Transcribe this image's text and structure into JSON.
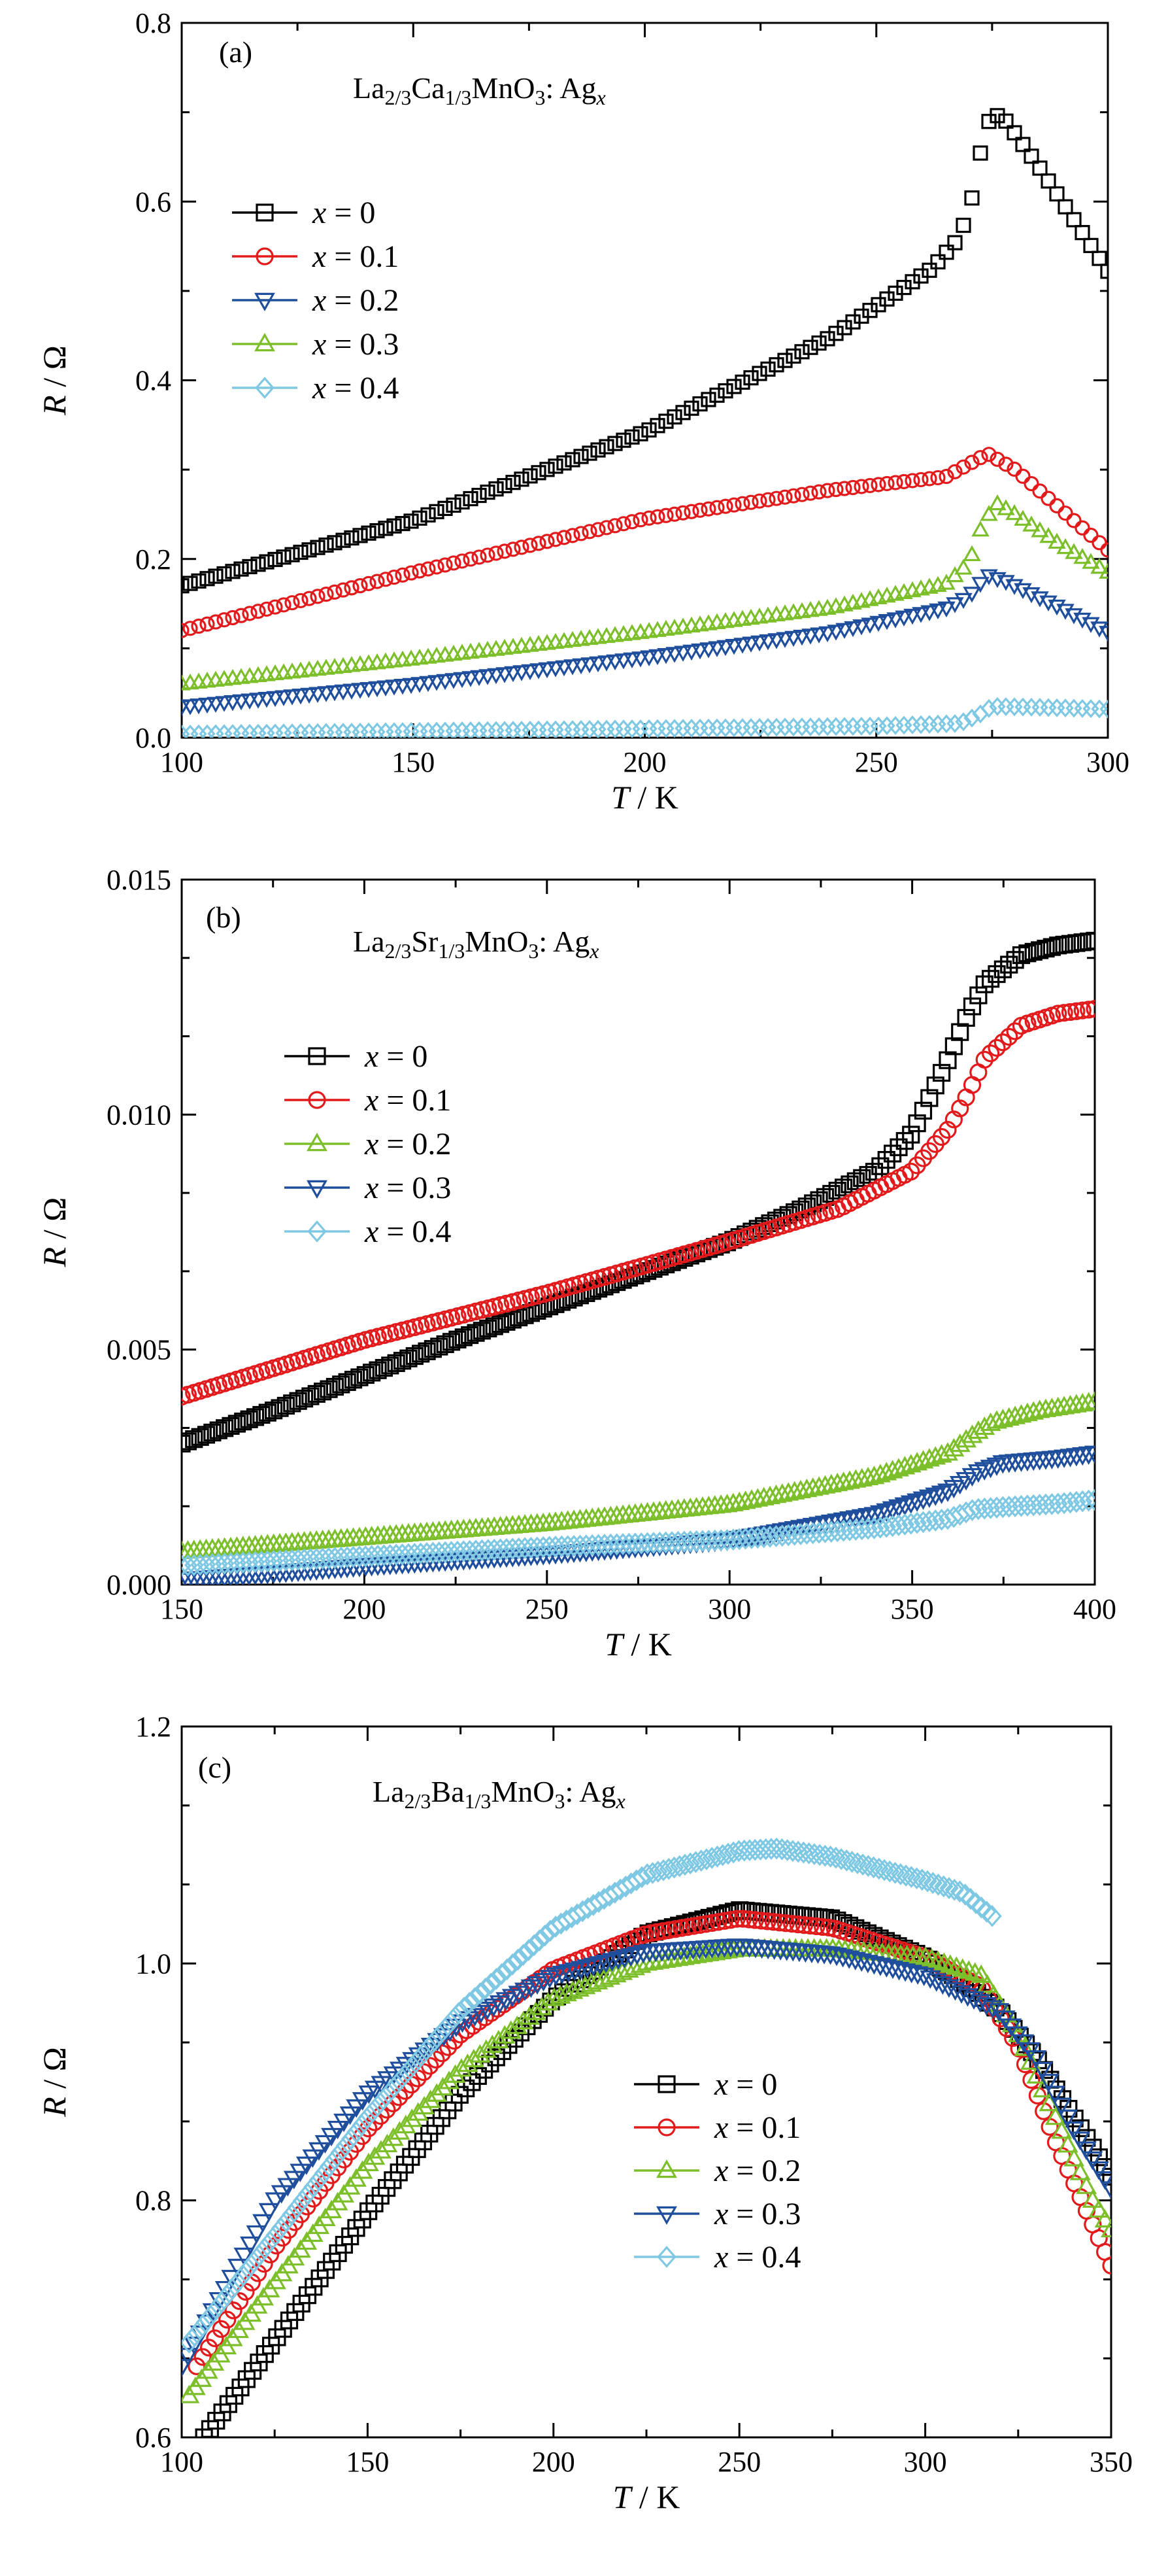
{
  "chart_data": [
    {
      "type": "scatter",
      "panel_label": "(a)",
      "title_parts": [
        {
          "t": "La",
          "s": "n"
        },
        {
          "t": "2/3",
          "s": "sub"
        },
        {
          "t": "Ca",
          "s": "n"
        },
        {
          "t": "1/3",
          "s": "sub"
        },
        {
          "t": "MnO",
          "s": "n"
        },
        {
          "t": "3",
          "s": "sub"
        },
        {
          "t": ": Ag",
          "s": "n"
        },
        {
          "t": "x",
          "s": "subi"
        }
      ],
      "xlabel_var": "T",
      "xlabel_unit": " / K",
      "ylabel_var": "R",
      "ylabel_unit": " / Ω",
      "xlim": [
        100,
        300
      ],
      "ylim": [
        0,
        0.8
      ],
      "xticks": [
        "100",
        "150",
        "200",
        "250",
        "300"
      ],
      "yticks": [
        "0.0",
        "0.2",
        "0.4",
        "0.6",
        "0.8"
      ],
      "legend_position": "upper-left",
      "series": [
        {
          "name_var": "x",
          "name_value": " = 0",
          "marker": "square",
          "color": "#000000",
          "points": [
            [
              100,
              0.17
            ],
            [
              150,
              0.243
            ],
            [
              200,
              0.342
            ],
            [
              240,
              0.448
            ],
            [
              262,
              0.525
            ],
            [
              268,
              0.56
            ],
            [
              271,
              0.61
            ],
            [
              273,
              0.67
            ],
            [
              275,
              0.7
            ],
            [
              278,
              0.69
            ],
            [
              285,
              0.64
            ],
            [
              300,
              0.522
            ]
          ]
        },
        {
          "name_var": "x",
          "name_value": " = 0.1",
          "marker": "circle",
          "color": "#e31a1c",
          "points": [
            [
              100,
              0.12
            ],
            [
              150,
              0.185
            ],
            [
              200,
              0.245
            ],
            [
              240,
              0.277
            ],
            [
              265,
              0.292
            ],
            [
              272,
              0.312
            ],
            [
              274,
              0.318
            ],
            [
              280,
              0.3
            ],
            [
              290,
              0.255
            ],
            [
              300,
              0.21
            ]
          ]
        },
        {
          "name_var": "x",
          "name_value": " = 0.2",
          "marker": "triangle-down",
          "color": "#1f4e9c",
          "points": [
            [
              100,
              0.035
            ],
            [
              150,
              0.06
            ],
            [
              200,
              0.09
            ],
            [
              240,
              0.118
            ],
            [
              265,
              0.145
            ],
            [
              270,
              0.158
            ],
            [
              274,
              0.182
            ],
            [
              278,
              0.175
            ],
            [
              290,
              0.145
            ],
            [
              300,
              0.118
            ]
          ]
        },
        {
          "name_var": "x",
          "name_value": " = 0.3",
          "marker": "triangle-up",
          "color": "#7cbf2a",
          "points": [
            [
              100,
              0.06
            ],
            [
              150,
              0.088
            ],
            [
              200,
              0.118
            ],
            [
              240,
              0.145
            ],
            [
              265,
              0.172
            ],
            [
              270,
              0.195
            ],
            [
              273,
              0.24
            ],
            [
              276,
              0.262
            ],
            [
              280,
              0.25
            ],
            [
              290,
              0.215
            ],
            [
              300,
              0.185
            ]
          ]
        },
        {
          "name_var": "x",
          "name_value": " = 0.4",
          "marker": "diamond",
          "color": "#7ec8e3",
          "points": [
            [
              100,
              0.004
            ],
            [
              150,
              0.007
            ],
            [
              200,
              0.01
            ],
            [
              250,
              0.013
            ],
            [
              268,
              0.016
            ],
            [
              272,
              0.025
            ],
            [
              275,
              0.035
            ],
            [
              285,
              0.034
            ],
            [
              300,
              0.032
            ]
          ]
        }
      ]
    },
    {
      "type": "scatter",
      "panel_label": "(b)",
      "title_parts": [
        {
          "t": "La",
          "s": "n"
        },
        {
          "t": "2/3",
          "s": "sub"
        },
        {
          "t": "Sr",
          "s": "n"
        },
        {
          "t": "1/3",
          "s": "sub"
        },
        {
          "t": "MnO",
          "s": "n"
        },
        {
          "t": "3",
          "s": "sub"
        },
        {
          "t": ": Ag",
          "s": "n"
        },
        {
          "t": "x",
          "s": "subi"
        }
      ],
      "xlabel_var": "T",
      "xlabel_unit": " / K",
      "ylabel_var": "R",
      "ylabel_unit": " / Ω",
      "xlim": [
        150,
        400
      ],
      "ylim": [
        0,
        0.015
      ],
      "xticks": [
        "150",
        "200",
        "250",
        "300",
        "350",
        "400"
      ],
      "yticks": [
        "0.000",
        "0.005",
        "0.010",
        "0.015"
      ],
      "legend_position": "upper-left",
      "series": [
        {
          "name_var": "x",
          "name_value": " = 0",
          "marker": "square",
          "color": "#000000",
          "points": [
            [
              150,
              0.003
            ],
            [
              175,
              0.0037
            ],
            [
              200,
              0.00445
            ],
            [
              225,
              0.0052
            ],
            [
              250,
              0.0059
            ],
            [
              275,
              0.0066
            ],
            [
              300,
              0.0073
            ],
            [
              320,
              0.008
            ],
            [
              340,
              0.0088
            ],
            [
              350,
              0.0096
            ],
            [
              360,
              0.0112
            ],
            [
              365,
              0.0121
            ],
            [
              370,
              0.0128
            ],
            [
              380,
              0.0134
            ],
            [
              390,
              0.0136
            ],
            [
              400,
              0.0137
            ]
          ]
        },
        {
          "name_var": "x",
          "name_value": " = 0.1",
          "marker": "circle",
          "color": "#e31a1c",
          "points": [
            [
              150,
              0.004
            ],
            [
              200,
              0.0052
            ],
            [
              250,
              0.0062
            ],
            [
              300,
              0.0073
            ],
            [
              330,
              0.008
            ],
            [
              350,
              0.0088
            ],
            [
              360,
              0.0097
            ],
            [
              365,
              0.0104
            ],
            [
              370,
              0.0112
            ],
            [
              380,
              0.0119
            ],
            [
              390,
              0.01215
            ],
            [
              400,
              0.01225
            ]
          ]
        },
        {
          "name_var": "x",
          "name_value": " = 0.2",
          "marker": "triangle-up",
          "color": "#7cbf2a",
          "points": [
            [
              150,
              0.0007
            ],
            [
              200,
              0.001
            ],
            [
              250,
              0.0013
            ],
            [
              300,
              0.0017
            ],
            [
              340,
              0.0023
            ],
            [
              360,
              0.0028
            ],
            [
              367,
              0.0032
            ],
            [
              372,
              0.00345
            ],
            [
              385,
              0.0037
            ],
            [
              400,
              0.00388
            ]
          ]
        },
        {
          "name_var": "x",
          "name_value": " = 0.3",
          "marker": "triangle-down",
          "color": "#1f4e9c",
          "points": [
            [
              150,
              0.0001
            ],
            [
              200,
              0.0004
            ],
            [
              250,
              0.00065
            ],
            [
              300,
              0.00095
            ],
            [
              340,
              0.0015
            ],
            [
              360,
              0.002
            ],
            [
              368,
              0.0024
            ],
            [
              375,
              0.0026
            ],
            [
              390,
              0.0027
            ],
            [
              400,
              0.0028
            ]
          ]
        },
        {
          "name_var": "x",
          "name_value": " = 0.4",
          "marker": "diamond",
          "color": "#7ec8e3",
          "points": [
            [
              150,
              0.0004
            ],
            [
              200,
              0.0006
            ],
            [
              250,
              0.0008
            ],
            [
              300,
              0.00095
            ],
            [
              340,
              0.0012
            ],
            [
              360,
              0.0014
            ],
            [
              367,
              0.0016
            ],
            [
              375,
              0.00165
            ],
            [
              390,
              0.00172
            ],
            [
              400,
              0.0018
            ]
          ]
        }
      ]
    },
    {
      "type": "scatter",
      "panel_label": "(c)",
      "title_parts": [
        {
          "t": "La",
          "s": "n"
        },
        {
          "t": "2/3",
          "s": "sub"
        },
        {
          "t": "Ba",
          "s": "n"
        },
        {
          "t": "1/3",
          "s": "sub"
        },
        {
          "t": "MnO",
          "s": "n"
        },
        {
          "t": "3",
          "s": "sub"
        },
        {
          "t": ": Ag",
          "s": "n"
        },
        {
          "t": "x",
          "s": "subi"
        }
      ],
      "xlabel_var": "T",
      "xlabel_unit": " / K",
      "ylabel_var": "R",
      "ylabel_unit": " / Ω",
      "xlim": [
        100,
        350
      ],
      "ylim": [
        0.6,
        1.2
      ],
      "xticks": [
        "100",
        "150",
        "200",
        "250",
        "300",
        "350"
      ],
      "yticks": [
        "0.6",
        "0.8",
        "1.0",
        "1.2"
      ],
      "legend_position": "lower-right",
      "series": [
        {
          "name_var": "x",
          "name_value": " = 0",
          "marker": "square",
          "color": "#000000",
          "points": [
            [
              106,
              0.6
            ],
            [
              120,
              0.66
            ],
            [
              150,
              0.79
            ],
            [
              175,
              0.89
            ],
            [
              200,
              0.97
            ],
            [
              225,
              1.025
            ],
            [
              250,
              1.045
            ],
            [
              275,
              1.038
            ],
            [
              300,
              1.005
            ],
            [
              310,
              0.985
            ],
            [
              320,
              0.96
            ],
            [
              330,
              0.92
            ],
            [
              340,
              0.87
            ],
            [
              350,
              0.82
            ]
          ]
        },
        {
          "name_var": "x",
          "name_value": " = 0.1",
          "marker": "circle",
          "color": "#e31a1c",
          "points": [
            [
              104,
              0.66
            ],
            [
              125,
              0.76
            ],
            [
              150,
              0.86
            ],
            [
              175,
              0.94
            ],
            [
              200,
              0.995
            ],
            [
              225,
              1.025
            ],
            [
              250,
              1.038
            ],
            [
              275,
              1.03
            ],
            [
              300,
              1.005
            ],
            [
              315,
              0.98
            ],
            [
              325,
              0.93
            ],
            [
              335,
              0.85
            ],
            [
              345,
              0.78
            ],
            [
              350,
              0.745
            ]
          ]
        },
        {
          "name_var": "x",
          "name_value": " = 0.2",
          "marker": "triangle-up",
          "color": "#7cbf2a",
          "points": [
            [
              102,
              0.635
            ],
            [
              125,
              0.73
            ],
            [
              150,
              0.83
            ],
            [
              175,
              0.91
            ],
            [
              200,
              0.97
            ],
            [
              225,
              1.0
            ],
            [
              250,
              1.012
            ],
            [
              275,
              1.012
            ],
            [
              300,
              1.005
            ],
            [
              315,
              0.99
            ],
            [
              325,
              0.94
            ],
            [
              335,
              0.87
            ],
            [
              345,
              0.8
            ],
            [
              350,
              0.775
            ]
          ]
        },
        {
          "name_var": "x",
          "name_value": " = 0.3",
          "marker": "triangle-down",
          "color": "#1f4e9c",
          "points": [
            [
              100,
              0.66
            ],
            [
              125,
              0.8
            ],
            [
              150,
              0.89
            ],
            [
              175,
              0.95
            ],
            [
              200,
              0.99
            ],
            [
              225,
              1.01
            ],
            [
              250,
              1.015
            ],
            [
              275,
              1.008
            ],
            [
              300,
              0.99
            ],
            [
              310,
              0.975
            ],
            [
              320,
              0.96
            ],
            [
              330,
              0.92
            ],
            [
              340,
              0.86
            ],
            [
              350,
              0.81
            ]
          ]
        },
        {
          "name_var": "x",
          "name_value": " = 0.4",
          "marker": "diamond",
          "color": "#7ec8e3",
          "points": [
            [
              102,
              0.68
            ],
            [
              125,
              0.77
            ],
            [
              150,
              0.87
            ],
            [
              175,
              0.96
            ],
            [
              200,
              1.03
            ],
            [
              225,
              1.075
            ],
            [
              250,
              1.095
            ],
            [
              260,
              1.097
            ],
            [
              275,
              1.09
            ],
            [
              300,
              1.07
            ],
            [
              310,
              1.06
            ],
            [
              318,
              1.04
            ]
          ]
        }
      ]
    }
  ]
}
